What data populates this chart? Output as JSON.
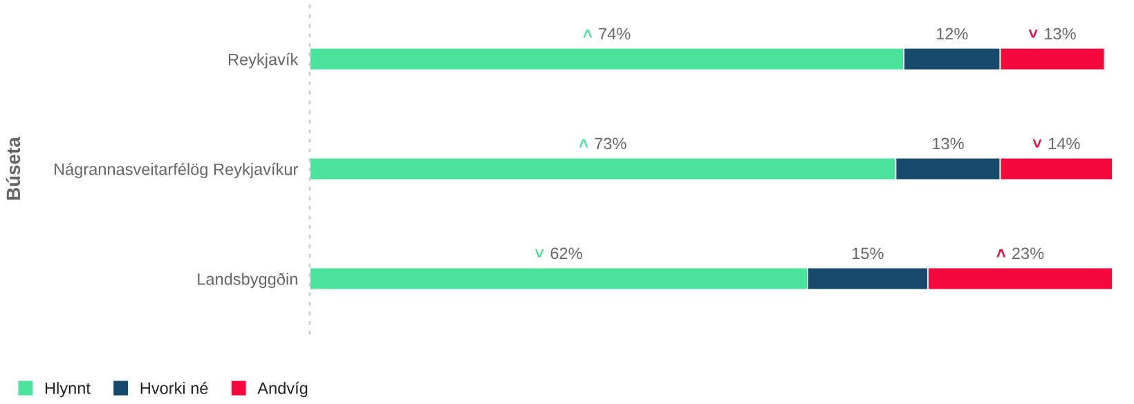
{
  "chart_data": {
    "type": "bar",
    "orientation": "horizontal",
    "stacked": true,
    "ylabel": "Búseta",
    "categories": [
      "Reykjavík",
      "Nágrannasveitarfélög Reykjavíkur",
      "Landsbyggðin"
    ],
    "series": [
      {
        "name": "Hlynnt",
        "color": "#4ae39b",
        "values": [
          74,
          73,
          62
        ],
        "value_labels": [
          "˄ 74%",
          "˄ 73%",
          "˅ 62%"
        ]
      },
      {
        "name": "Hvorki né",
        "color": "#174a6c",
        "values": [
          12,
          13,
          15
        ],
        "value_labels": [
          "12%",
          "13%",
          "15%"
        ]
      },
      {
        "name": "Andvíg",
        "color": "#f5083b",
        "values": [
          13,
          14,
          23
        ],
        "value_labels": [
          "˅ 13%",
          "˅ 14%",
          "˄ 23%"
        ]
      }
    ],
    "xlim": [
      0,
      100
    ],
    "tick_labels": "y",
    "legend": "bottom left"
  }
}
